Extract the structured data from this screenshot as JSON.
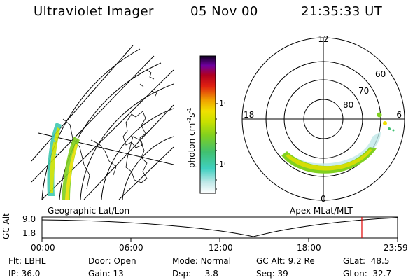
{
  "header": {
    "instrument": "Ultraviolet Imager",
    "date": "05 Nov 00",
    "time": "21:35:33 UT"
  },
  "colorbar": {
    "label": "photon cm",
    "exp1": "-2",
    "mid": "s",
    "exp2": "-1",
    "ticks": [
      {
        "value": 100,
        "label": "100"
      },
      {
        "value": 10,
        "label": "10"
      }
    ]
  },
  "geo_panel": {
    "caption": "Geographic Lat/Lon"
  },
  "polar_panel": {
    "caption": "Apex MLat/MLT",
    "mlt_labels": {
      "top": "12",
      "left": "18",
      "right": "6",
      "bottom": "0"
    },
    "lat_labels": [
      "60",
      "70",
      "80"
    ]
  },
  "altitude_plot": {
    "ylabel": "GC Alt",
    "yticks": [
      "9.0",
      "1.8"
    ],
    "xticks": [
      "00:00",
      "06:00",
      "12:00",
      "18:00",
      "23:59"
    ],
    "marker_hour": 21.59
  },
  "status": {
    "row1": [
      {
        "key": "Flt:",
        "value": "LBHL"
      },
      {
        "key": "Door:",
        "value": "Open"
      },
      {
        "key": "Mode:",
        "value": "Normal"
      },
      {
        "key": "GC Alt:",
        "value": "9.2 Re"
      },
      {
        "key": "GLat:",
        "value": "48.5"
      }
    ],
    "row2": [
      {
        "key": "IP:",
        "value": "36.0"
      },
      {
        "key": "Gain:",
        "value": "13"
      },
      {
        "key": "Dsp:",
        "value": "-3.8"
      },
      {
        "key": "Seq:",
        "value": "39"
      },
      {
        "key": "GLon:",
        "value": "32.7"
      }
    ]
  },
  "colors": {
    "colorbar_stops": [
      "#ffffff",
      "#bfe8e8",
      "#40d0c0",
      "#40c070",
      "#80d020",
      "#c8e000",
      "#f0e000",
      "#f0a000",
      "#e02010",
      "#b00020",
      "#7000a0",
      "#100020"
    ],
    "marker": "#e00000"
  }
}
